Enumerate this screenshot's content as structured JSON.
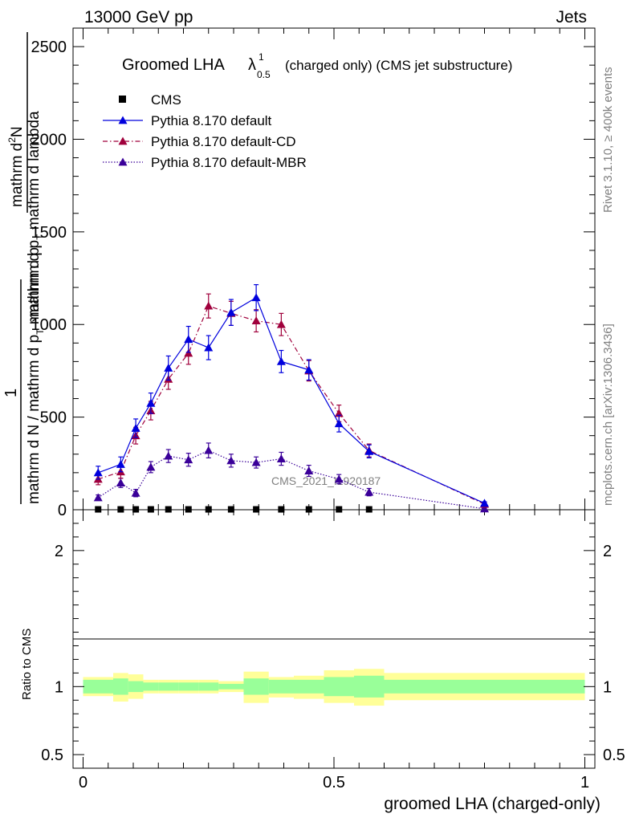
{
  "header": {
    "left": "13000 GeV pp",
    "right": "Jets"
  },
  "side_labels": {
    "rivet": "Rivet 3.1.10, ≥ 400k events",
    "mcplots": "mcplots.cern.ch [arXiv:1306.3436]"
  },
  "watermark": "CMS_2021_I1920187",
  "title": {
    "prefix": "Groomed LHA",
    "symbol": "λ",
    "superscript": "1",
    "subscript": "0.5",
    "suffix": "(charged only) (CMS jet substructure)"
  },
  "ylabel_top": {
    "num1": "mathrm d",
    "num1_sup": "2",
    "num1_tail": "N",
    "den": "mathrm d p",
    "den_sub": "T",
    "den_tail": " mathrm d lambda",
    "prefix_num": "1",
    "prefix_den": "mathrm d N / mathrm d p",
    "prefix_den_sub": "T",
    "prefix_den_tail": " mathrm d p"
  },
  "ylabel_ratio": "Ratio to CMS",
  "xlabel": "groomed LHA (charged-only)",
  "legend": [
    {
      "label": "CMS",
      "color": "#000000",
      "style": "square"
    },
    {
      "label": "Pythia 8.170 default",
      "color": "#0000dd",
      "style": "solid"
    },
    {
      "label": "Pythia 8.170 default-CD",
      "color": "#a0003c",
      "style": "dashdot"
    },
    {
      "label": "Pythia 8.170 default-MBR",
      "color": "#3a0099",
      "style": "dotted"
    }
  ],
  "chart_data": [
    {
      "type": "line",
      "panel": "main",
      "xlim": [
        -0.02,
        1.02
      ],
      "ylim": [
        0,
        2600
      ],
      "yticks": [
        0,
        500,
        1000,
        1500,
        2000,
        2500
      ],
      "ytick_labels": [
        "0",
        "500",
        "1000",
        "1500",
        "2000",
        "2500"
      ],
      "series": [
        {
          "name": "CMS",
          "x": [
            0.03,
            0.075,
            0.105,
            0.135,
            0.17,
            0.21,
            0.25,
            0.295,
            0.345,
            0.395,
            0.45,
            0.51,
            0.57
          ],
          "y": [
            2,
            2,
            2,
            2,
            2,
            2,
            2,
            2,
            2,
            2,
            2,
            2,
            2
          ],
          "color": "#000000"
        },
        {
          "name": "Pythia 8.170 default",
          "x": [
            0.03,
            0.075,
            0.105,
            0.135,
            0.17,
            0.21,
            0.25,
            0.295,
            0.345,
            0.395,
            0.45,
            0.51,
            0.57,
            0.8
          ],
          "y": [
            200,
            245,
            440,
            575,
            765,
            920,
            875,
            1065,
            1145,
            800,
            755,
            465,
            315,
            35
          ],
          "yerr": [
            35,
            40,
            50,
            55,
            65,
            70,
            65,
            70,
            70,
            60,
            55,
            45,
            35,
            8
          ],
          "color": "#0000dd"
        },
        {
          "name": "Pythia 8.170 default-CD",
          "x": [
            0.03,
            0.075,
            0.105,
            0.135,
            0.17,
            0.21,
            0.25,
            0.295,
            0.345,
            0.395,
            0.45,
            0.51,
            0.57,
            0.8
          ],
          "y": [
            165,
            205,
            400,
            535,
            705,
            845,
            1100,
            1060,
            1020,
            1000,
            750,
            520,
            320,
            30
          ],
          "yerr": [
            30,
            35,
            45,
            50,
            55,
            60,
            65,
            65,
            60,
            60,
            55,
            45,
            35,
            8
          ],
          "color": "#a0003c"
        },
        {
          "name": "Pythia 8.170 default-MBR",
          "x": [
            0.03,
            0.075,
            0.105,
            0.135,
            0.17,
            0.21,
            0.25,
            0.295,
            0.345,
            0.395,
            0.45,
            0.51,
            0.57,
            0.8
          ],
          "y": [
            65,
            145,
            90,
            230,
            290,
            270,
            320,
            265,
            255,
            275,
            210,
            165,
            95,
            5
          ],
          "yerr": [
            15,
            25,
            20,
            30,
            35,
            35,
            40,
            35,
            30,
            35,
            30,
            25,
            20,
            3
          ],
          "color": "#3a0099"
        }
      ]
    },
    {
      "type": "area",
      "panel": "ratio",
      "xlim": [
        -0.02,
        1.02
      ],
      "ylim": [
        0.4,
        2.3
      ],
      "yticks": [
        0.5,
        1,
        2
      ],
      "ytick_labels": [
        "0.5",
        "1",
        "2"
      ],
      "xticks": [
        0,
        0.5,
        1
      ],
      "xtick_labels": [
        "0",
        "0.5",
        "1"
      ],
      "bands": {
        "edges": [
          0,
          0.06,
          0.09,
          0.12,
          0.15,
          0.19,
          0.23,
          0.27,
          0.32,
          0.37,
          0.42,
          0.48,
          0.54,
          0.6,
          1.0
        ],
        "stat_lo": [
          0.95,
          0.94,
          0.96,
          0.97,
          0.97,
          0.97,
          0.97,
          0.98,
          0.94,
          0.95,
          0.95,
          0.93,
          0.92,
          0.95
        ],
        "stat_hi": [
          1.05,
          1.06,
          1.04,
          1.03,
          1.03,
          1.03,
          1.03,
          1.02,
          1.06,
          1.05,
          1.05,
          1.07,
          1.08,
          1.05
        ],
        "total_lo": [
          0.93,
          0.89,
          0.91,
          0.95,
          0.95,
          0.95,
          0.95,
          0.96,
          0.88,
          0.92,
          0.91,
          0.88,
          0.86,
          0.9
        ],
        "total_hi": [
          1.07,
          1.1,
          1.09,
          1.05,
          1.05,
          1.05,
          1.05,
          1.04,
          1.11,
          1.07,
          1.08,
          1.12,
          1.13,
          1.1
        ],
        "colors": {
          "total": "#ffff99",
          "stat": "#99ff99"
        }
      },
      "reference_line": 1
    }
  ]
}
